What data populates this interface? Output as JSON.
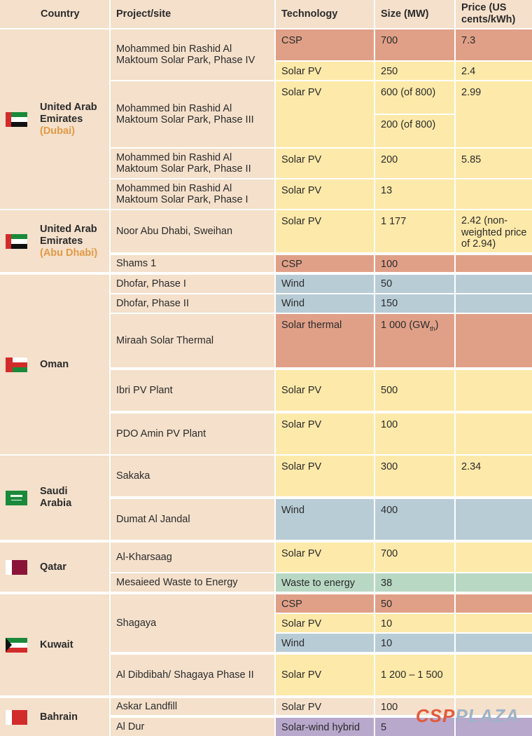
{
  "headers": {
    "country": "Country",
    "project": "Project/site",
    "technology": "Technology",
    "size": "Size (MW)",
    "price": "Price (US cents/kWh)"
  },
  "countries": [
    {
      "name": "United Arab Emirates",
      "sub": "(Dubai)",
      "flag": "uae-flag-icon"
    },
    {
      "name": "United Arab Emirates",
      "sub": "(Abu Dhabi)",
      "flag": "uae-flag-icon"
    },
    {
      "name": "Oman",
      "sub": "",
      "flag": "oman-flag-icon"
    },
    {
      "name": "Saudi Arabia",
      "sub": "",
      "flag": "saudi-flag-icon"
    },
    {
      "name": "Qatar",
      "sub": "",
      "flag": "qatar-flag-icon"
    },
    {
      "name": "Kuwait",
      "sub": "",
      "flag": "kuwait-flag-icon"
    },
    {
      "name": "Bahrain",
      "sub": "",
      "flag": "bahrain-flag-icon"
    }
  ],
  "projects": [
    "Mohammed bin Rashid Al Maktoum Solar Park, Phase IV",
    "Mohammed bin Rashid Al Maktoum Solar Park, Phase III",
    "Mohammed bin Rashid Al Maktoum Solar Park, Phase II",
    "Mohammed bin Rashid Al Maktoum Solar Park, Phase I",
    "Noor Abu Dhabi, Sweihan",
    "Shams 1",
    "Dhofar, Phase I",
    "Dhofar, Phase II",
    "Miraah Solar Thermal",
    "Ibri PV Plant",
    "PDO Amin PV Plant",
    "Sakaka",
    "Dumat Al Jandal",
    "Al-Kharsaag",
    "Mesaieed Waste to Energy",
    "Shagaya",
    "Al Dibdibah/ Shagaya Phase II",
    "Askar Landfill",
    "Al Dur"
  ],
  "tech": [
    "CSP",
    "Solar PV",
    "Solar PV",
    "Solar PV",
    "Solar PV",
    "Solar PV",
    "CSP",
    "Wind",
    "Wind",
    "Solar thermal",
    "Solar PV",
    "Solar PV",
    "Solar PV",
    "Wind",
    "Solar PV",
    "Waste to energy",
    "CSP",
    "Solar PV",
    "Wind",
    "Solar PV",
    "Solar PV",
    "Solar-wind hybrid"
  ],
  "size": [
    "700",
    "250",
    "600 (of 800)",
    "200 (of 800)",
    "200",
    "13",
    "1 177",
    "100",
    "50",
    "150",
    "1 000 (GW",
    "th",
    ")",
    "500",
    "100",
    "300",
    "400",
    "700",
    "38",
    "50",
    "10",
    "10",
    "1 200 – 1 500",
    "100",
    "5"
  ],
  "price": [
    "7.3",
    "2.4",
    "2.99",
    "5.85",
    "2.42 (non-weighted price of 2.94)",
    "2.34"
  ],
  "watermark": {
    "part1": "CSP",
    "part2": "PLAZA"
  },
  "colors": {
    "header_bg": "#f4e0cb",
    "pv": "#fde9a9",
    "csp": "#e0a088",
    "wind": "#b8ccd6",
    "waste": "#b8d8c4",
    "hybrid": "#b8a8cc",
    "subtitle": "#e29a45"
  }
}
